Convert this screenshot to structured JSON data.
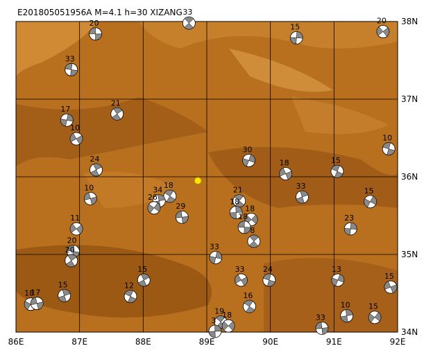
{
  "title": "E201805051956A  M=4.1  h=30  XIZANG",
  "lon_ticks": [
    {
      "value": 86,
      "label": "86E"
    },
    {
      "value": 87,
      "label": "87E"
    },
    {
      "value": 88,
      "label": "88E"
    },
    {
      "value": 89,
      "label": "89E"
    },
    {
      "value": 90,
      "label": "90E"
    },
    {
      "value": 91,
      "label": "91E"
    },
    {
      "value": 92,
      "label": "92E"
    }
  ],
  "lat_ticks": [
    {
      "value": 34,
      "label": "34N"
    },
    {
      "value": 35,
      "label": "35N"
    },
    {
      "value": 36,
      "label": "36N"
    },
    {
      "value": 37,
      "label": "37N"
    },
    {
      "value": 38,
      "label": "38N"
    }
  ],
  "lonlim": [
    86,
    92
  ],
  "latlim": [
    34,
    38
  ],
  "epicenter": {
    "lon": 88.86,
    "lat": 35.95
  },
  "events": [
    {
      "lon": 87.25,
      "lat": 37.84,
      "depth": 20
    },
    {
      "lon": 88.72,
      "lat": 37.98,
      "depth": 33
    },
    {
      "lon": 90.41,
      "lat": 37.79,
      "depth": 15
    },
    {
      "lon": 91.77,
      "lat": 37.87,
      "depth": 20
    },
    {
      "lon": 86.87,
      "lat": 37.38,
      "depth": 33
    },
    {
      "lon": 87.59,
      "lat": 36.81,
      "depth": 21
    },
    {
      "lon": 86.8,
      "lat": 36.73,
      "depth": 17
    },
    {
      "lon": 86.95,
      "lat": 36.49,
      "depth": 10
    },
    {
      "lon": 91.86,
      "lat": 36.36,
      "depth": 10
    },
    {
      "lon": 87.26,
      "lat": 36.09,
      "depth": 24
    },
    {
      "lon": 89.66,
      "lat": 36.21,
      "depth": 30
    },
    {
      "lon": 90.24,
      "lat": 36.04,
      "depth": 18
    },
    {
      "lon": 91.05,
      "lat": 36.07,
      "depth": 15
    },
    {
      "lon": 90.5,
      "lat": 35.74,
      "depth": 33
    },
    {
      "lon": 91.57,
      "lat": 35.68,
      "depth": 15
    },
    {
      "lon": 87.17,
      "lat": 35.72,
      "depth": 10
    },
    {
      "lon": 88.42,
      "lat": 35.75,
      "depth": 18
    },
    {
      "lon": 88.25,
      "lat": 35.69,
      "depth": 34
    },
    {
      "lon": 88.17,
      "lat": 35.6,
      "depth": 26
    },
    {
      "lon": 88.61,
      "lat": 35.48,
      "depth": 29
    },
    {
      "lon": 89.51,
      "lat": 35.69,
      "depth": 21
    },
    {
      "lon": 89.46,
      "lat": 35.54,
      "depth": 18
    },
    {
      "lon": 89.7,
      "lat": 35.45,
      "depth": 18
    },
    {
      "lon": 89.59,
      "lat": 35.35,
      "depth": 18
    },
    {
      "lon": 89.74,
      "lat": 35.17,
      "depth": 8
    },
    {
      "lon": 91.26,
      "lat": 35.33,
      "depth": 23
    },
    {
      "lon": 86.95,
      "lat": 35.33,
      "depth": 11
    },
    {
      "lon": 86.9,
      "lat": 35.04,
      "depth": 20
    },
    {
      "lon": 86.87,
      "lat": 34.92,
      "depth": 20
    },
    {
      "lon": 89.14,
      "lat": 34.96,
      "depth": 33
    },
    {
      "lon": 89.54,
      "lat": 34.67,
      "depth": 33
    },
    {
      "lon": 89.98,
      "lat": 34.67,
      "depth": 24
    },
    {
      "lon": 88.01,
      "lat": 34.67,
      "depth": 15
    },
    {
      "lon": 91.06,
      "lat": 34.67,
      "depth": 13
    },
    {
      "lon": 91.89,
      "lat": 34.58,
      "depth": 15
    },
    {
      "lon": 87.8,
      "lat": 34.46,
      "depth": 12
    },
    {
      "lon": 86.76,
      "lat": 34.47,
      "depth": 15
    },
    {
      "lon": 86.23,
      "lat": 34.36,
      "depth": 18
    },
    {
      "lon": 86.33,
      "lat": 34.37,
      "depth": 17
    },
    {
      "lon": 89.67,
      "lat": 34.33,
      "depth": 16
    },
    {
      "lon": 91.2,
      "lat": 34.21,
      "depth": 10
    },
    {
      "lon": 91.64,
      "lat": 34.19,
      "depth": 15
    },
    {
      "lon": 90.81,
      "lat": 34.05,
      "depth": 33
    },
    {
      "lon": 89.22,
      "lat": 34.13,
      "depth": 19
    },
    {
      "lon": 89.13,
      "lat": 34.01,
      "depth": 3
    },
    {
      "lon": 89.34,
      "lat": 34.08,
      "depth": 18
    }
  ]
}
